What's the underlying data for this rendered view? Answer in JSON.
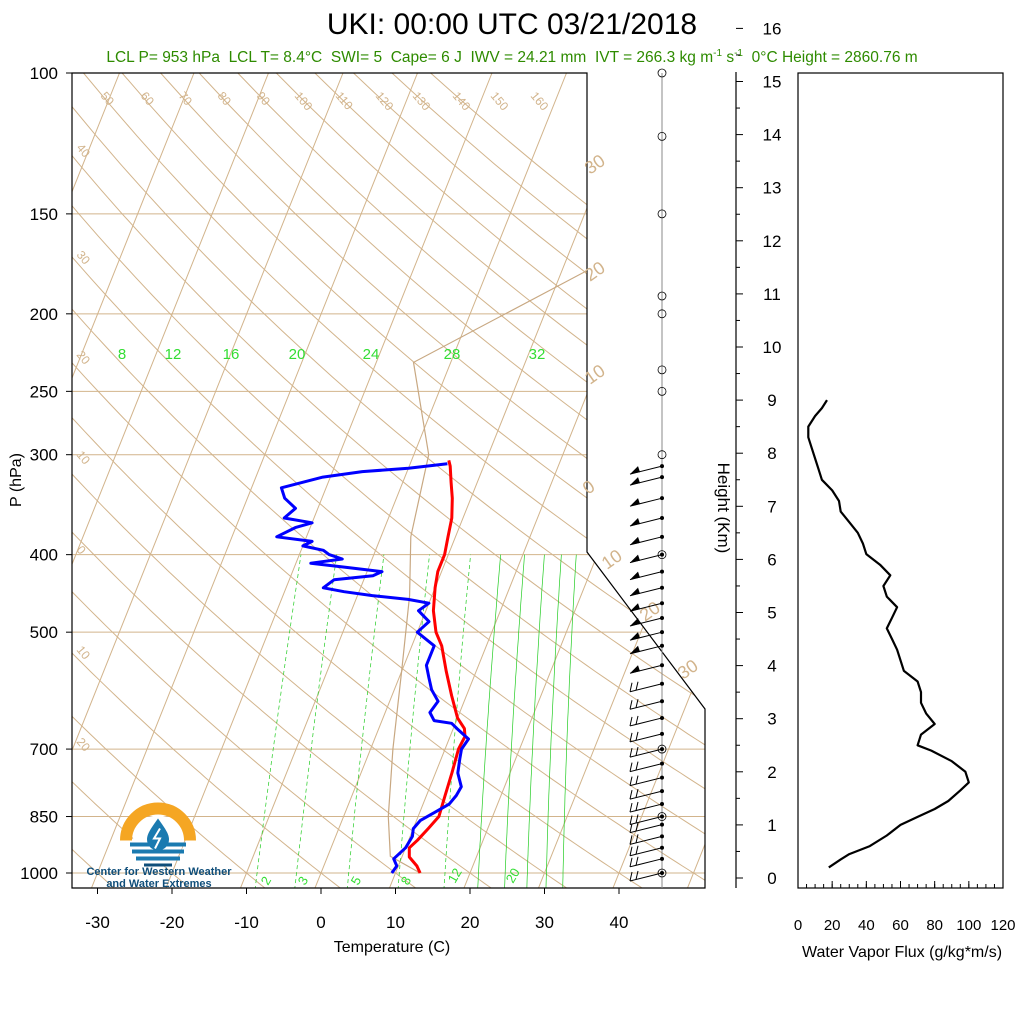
{
  "header": {
    "title": "UKI: 00:00 UTC 03/21/2018",
    "lcl_p": "LCL P= 953 hPa",
    "lcl_t": "LCL T= 8.4°C",
    "swi": "SWI= 5",
    "cape": "Cape= 6 J",
    "iwv": "IWV = 24.21 mm",
    "ivt_prefix": "IVT = 266.3 kg m",
    "ivt_exp1": "-1",
    "ivt_mid": " s",
    "ivt_exp2": "-1",
    "zero_height": "0°C Height = 2860.76 m"
  },
  "logo": {
    "line1": "Center for Western Weather",
    "line2": "and Water Extremes",
    "colors": {
      "sun": "#f5a623",
      "water": "#1a7ab0",
      "dark": "#0f4e7a"
    }
  },
  "chart_data": [
    {
      "type": "line",
      "name": "skew-t",
      "xlabel": "Temperature (C)",
      "ylabel": "P (hPa)",
      "y_scale": "log",
      "xlim": [
        -33,
        52
      ],
      "ylim": [
        1025,
        100
      ],
      "x_ticks": [
        -30,
        -20,
        -10,
        0,
        10,
        20,
        30,
        40
      ],
      "y_ticks": [
        100,
        150,
        200,
        250,
        300,
        400,
        500,
        700,
        850,
        1000
      ],
      "dry_adiabat_labels": [
        "50",
        "60",
        "70",
        "80",
        "90",
        "100",
        "110",
        "120",
        "130",
        "140",
        "150",
        "160",
        "40",
        "30",
        "20",
        "10",
        "0",
        "10",
        "20"
      ],
      "mixing_ratio_labels": [
        "8",
        "12",
        "16",
        "20",
        "24",
        "28",
        "32"
      ],
      "mixing_ratio_labels_bottom": [
        "2",
        "3",
        "5",
        "8",
        "12",
        "20"
      ],
      "moist_adiabat_labels": [
        "30",
        "20",
        "10",
        "0",
        "10",
        "20",
        "30"
      ],
      "colors": {
        "temperature": "#ff0000",
        "dewpoint": "#0000ff",
        "isotherm": "#d2b48c",
        "mixing_ratio": "#22cc22",
        "parcel": "#c8a882"
      },
      "series": [
        {
          "name": "Temperature",
          "points": [
            [
              13.3,
              1000
            ],
            [
              12.5,
              980
            ],
            [
              11,
              955
            ],
            [
              10.5,
              930
            ],
            [
              11.2,
              910
            ],
            [
              12,
              880
            ],
            [
              12.8,
              850
            ],
            [
              12.5,
              800
            ],
            [
              12.2,
              750
            ],
            [
              11.8,
              700
            ],
            [
              12,
              675
            ],
            [
              11.5,
              660
            ],
            [
              10,
              640
            ],
            [
              8,
              600
            ],
            [
              6,
              560
            ],
            [
              4,
              520
            ],
            [
              2.5,
              500
            ],
            [
              1,
              470
            ],
            [
              0,
              440
            ],
            [
              -0.5,
              420
            ],
            [
              -0.5,
              400
            ],
            [
              -1,
              380
            ],
            [
              -1.5,
              360
            ],
            [
              -2.5,
              340
            ],
            [
              -3.5,
              325
            ],
            [
              -4.5,
              310
            ],
            [
              -5,
              305
            ]
          ]
        },
        {
          "name": "Dew point",
          "points": [
            [
              9.5,
              1000
            ],
            [
              9.8,
              980
            ],
            [
              9,
              960
            ],
            [
              10,
              930
            ],
            [
              10.3,
              900
            ],
            [
              10,
              880
            ],
            [
              10.5,
              860
            ],
            [
              12,
              840
            ],
            [
              13.5,
              820
            ],
            [
              14,
              800
            ],
            [
              14.2,
              780
            ],
            [
              13,
              750
            ],
            [
              12.5,
              720
            ],
            [
              12.2,
              700
            ],
            [
              12.6,
              680
            ],
            [
              10.5,
              660
            ],
            [
              9.5,
              650
            ],
            [
              7,
              645
            ],
            [
              6,
              630
            ],
            [
              6.5,
              610
            ],
            [
              5,
              590
            ],
            [
              4,
              570
            ],
            [
              3,
              550
            ],
            [
              3,
              520
            ],
            [
              0,
              500
            ],
            [
              1,
              485
            ],
            [
              -1,
              470
            ],
            [
              0,
              460
            ],
            [
              -3,
              455
            ],
            [
              -8,
              450
            ],
            [
              -12,
              445
            ],
            [
              -15,
              440
            ],
            [
              -14,
              430
            ],
            [
              -9,
              425
            ],
            [
              -8,
              420
            ],
            [
              -13,
              415
            ],
            [
              -18,
              410
            ],
            [
              -14,
              405
            ],
            [
              -16,
              400
            ],
            [
              -17,
              395
            ],
            [
              -20,
              390
            ],
            [
              -19,
              385
            ],
            [
              -24,
              380
            ],
            [
              -22,
              370
            ],
            [
              -20,
              365
            ],
            [
              -24,
              360
            ],
            [
              -23,
              350
            ],
            [
              -25,
              340
            ],
            [
              -26,
              330
            ],
            [
              -21,
              320
            ],
            [
              -16,
              315
            ],
            [
              -10,
              312
            ],
            [
              -5,
              308
            ]
          ]
        }
      ],
      "parcel": [
        [
          13.3,
          1000
        ],
        [
          8.4,
          953
        ],
        [
          6,
          850
        ],
        [
          3,
          700
        ],
        [
          0,
          560
        ],
        [
          -3,
          450
        ],
        [
          -6,
          380
        ],
        [
          -8,
          300
        ],
        [
          -15,
          230
        ],
        [
          6,
          170
        ],
        [
          20,
          120
        ],
        [
          26,
          100
        ]
      ]
    },
    {
      "type": "wind-barbs",
      "name": "wind-profile",
      "pressure_levels": [
        1000,
        960,
        930,
        900,
        870,
        850,
        820,
        790,
        760,
        730,
        700,
        670,
        640,
        610,
        580,
        550,
        520,
        500,
        480,
        460,
        440,
        420,
        400,
        380,
        360,
        340,
        320,
        310
      ]
    },
    {
      "type": "line",
      "name": "water-vapor-flux",
      "xlabel": "Water Vapor Flux (g/kg*m/s)",
      "ylabel": "Height (Km)",
      "xlim": [
        0,
        120
      ],
      "ylim": [
        -0.3,
        16.3
      ],
      "x_ticks": [
        0,
        20,
        40,
        60,
        80,
        100,
        120
      ],
      "y_ticks": [
        0,
        1,
        2,
        3,
        4,
        5,
        6,
        7,
        8,
        9,
        10,
        11,
        12,
        13,
        14,
        15,
        16
      ],
      "series": [
        {
          "name": "Water Vapor Flux",
          "points": [
            [
              18,
              0.2
            ],
            [
              25,
              0.35
            ],
            [
              30,
              0.45
            ],
            [
              42,
              0.6
            ],
            [
              52,
              0.8
            ],
            [
              60,
              1.0
            ],
            [
              70,
              1.15
            ],
            [
              80,
              1.3
            ],
            [
              88,
              1.45
            ],
            [
              95,
              1.65
            ],
            [
              100,
              1.8
            ],
            [
              98,
              2.0
            ],
            [
              90,
              2.2
            ],
            [
              78,
              2.4
            ],
            [
              70,
              2.5
            ],
            [
              72,
              2.7
            ],
            [
              80,
              2.9
            ],
            [
              75,
              3.1
            ],
            [
              72,
              3.3
            ],
            [
              72,
              3.5
            ],
            [
              70,
              3.7
            ],
            [
              62,
              3.9
            ],
            [
              60,
              4.1
            ],
            [
              58,
              4.3
            ],
            [
              55,
              4.5
            ],
            [
              52,
              4.7
            ],
            [
              55,
              4.9
            ],
            [
              58,
              5.1
            ],
            [
              52,
              5.3
            ],
            [
              50,
              5.5
            ],
            [
              54,
              5.7
            ],
            [
              48,
              5.9
            ],
            [
              40,
              6.1
            ],
            [
              38,
              6.3
            ],
            [
              35,
              6.5
            ],
            [
              30,
              6.7
            ],
            [
              25,
              6.9
            ],
            [
              24,
              7.1
            ],
            [
              20,
              7.3
            ],
            [
              14,
              7.5
            ],
            [
              12,
              7.7
            ],
            [
              10,
              7.9
            ],
            [
              8,
              8.1
            ],
            [
              6,
              8.3
            ],
            [
              6,
              8.5
            ],
            [
              10,
              8.7
            ],
            [
              14,
              8.85
            ],
            [
              17,
              9.0
            ]
          ]
        }
      ]
    }
  ]
}
